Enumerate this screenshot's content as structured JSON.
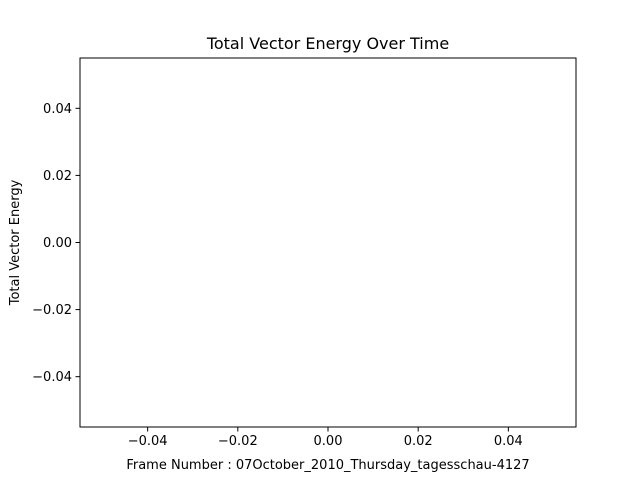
{
  "chart_data": {
    "type": "line",
    "title": "Total Vector Energy Over Time",
    "xlabel": "Frame Number : 07October_2010_Thursday_tagesschau-4127",
    "ylabel": "Total Vector Energy",
    "xlim": [
      -0.055,
      0.055
    ],
    "ylim": [
      -0.055,
      0.055
    ],
    "x_ticks": [
      {
        "value": -0.04,
        "label": "−0.04"
      },
      {
        "value": -0.02,
        "label": "−0.02"
      },
      {
        "value": 0.0,
        "label": "0.00"
      },
      {
        "value": 0.02,
        "label": "0.02"
      },
      {
        "value": 0.04,
        "label": "0.04"
      }
    ],
    "y_ticks": [
      {
        "value": 0.04,
        "label": "0.04"
      },
      {
        "value": 0.02,
        "label": "0.02"
      },
      {
        "value": 0.0,
        "label": "0.00"
      },
      {
        "value": -0.02,
        "label": "−0.02"
      },
      {
        "value": -0.04,
        "label": "−0.04"
      }
    ],
    "series": [
      {
        "x": [],
        "y": []
      }
    ],
    "grid": false,
    "legend": "none"
  }
}
